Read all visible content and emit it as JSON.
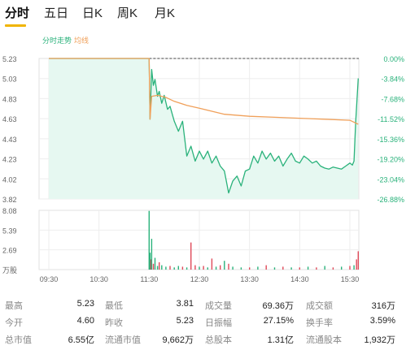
{
  "tabs": [
    {
      "label": "分时",
      "active": true
    },
    {
      "label": "五日",
      "active": false
    },
    {
      "label": "日K",
      "active": false
    },
    {
      "label": "周K",
      "active": false
    },
    {
      "label": "月K",
      "active": false
    }
  ],
  "colors": {
    "price_line": "#2ab27b",
    "avg_line": "#f0a05a",
    "area_fill": "#e6f8f1",
    "up": "#e04a5a",
    "down": "#2ab27b",
    "grid": "#eeeeee",
    "ref_line": "#444444",
    "tab_underline": "#f0b400"
  },
  "chart_data": [
    {
      "type": "line",
      "legend": [
        {
          "name": "分时走势",
          "color": "#2ab27b"
        },
        {
          "name": "均线",
          "color": "#f0a05a"
        }
      ],
      "legend_position": "top-left",
      "x_ticks": [
        "09:30",
        "10:30",
        "11:30",
        "12:30",
        "13:30",
        "14:30",
        "15:30"
      ],
      "y_ticks_left": [
        "5.23",
        "5.03",
        "4.83",
        "4.63",
        "4.43",
        "4.23",
        "4.02",
        "3.82"
      ],
      "y_ticks_right": [
        "0.00%",
        "-3.84%",
        "-7.68%",
        "-11.52%",
        "-15.36%",
        "-19.20%",
        "-23.04%",
        "-26.88%"
      ],
      "ylim": [
        3.82,
        5.23
      ],
      "grid": true,
      "series": [
        {
          "name": "分时走势",
          "x": [
            "09:30",
            "11:28",
            "11:30",
            "11:31",
            "11:33",
            "11:35",
            "11:37",
            "11:40",
            "11:42",
            "11:45",
            "11:48",
            "11:52",
            "11:55",
            "12:00",
            "12:05",
            "12:10",
            "12:15",
            "12:20",
            "12:25",
            "12:30",
            "12:35",
            "12:40",
            "12:45",
            "12:50",
            "12:55",
            "13:00",
            "13:05",
            "13:10",
            "13:15",
            "13:20",
            "13:25",
            "13:30",
            "13:35",
            "13:40",
            "13:45",
            "13:50",
            "13:55",
            "14:00",
            "14:05",
            "14:10",
            "14:15",
            "14:20",
            "14:25",
            "14:30",
            "14:35",
            "14:40",
            "14:45",
            "14:50",
            "14:55",
            "15:00",
            "15:05",
            "15:10",
            "15:15",
            "15:20",
            "15:25",
            "15:30",
            "15:33",
            "15:35",
            "15:37",
            "15:40"
          ],
          "y": [
            5.23,
            5.23,
            5.23,
            4.62,
            5.12,
            4.96,
            5.02,
            4.85,
            4.9,
            4.78,
            4.86,
            4.72,
            4.75,
            4.6,
            4.5,
            4.6,
            4.25,
            4.35,
            4.2,
            4.3,
            4.22,
            4.3,
            4.18,
            4.25,
            4.15,
            4.1,
            3.88,
            4.0,
            4.05,
            3.95,
            4.1,
            4.12,
            4.25,
            4.18,
            4.3,
            4.22,
            4.28,
            4.2,
            4.25,
            4.15,
            4.22,
            4.28,
            4.2,
            4.18,
            4.25,
            4.22,
            4.18,
            4.2,
            4.15,
            4.13,
            4.12,
            4.14,
            4.13,
            4.12,
            4.15,
            4.18,
            4.16,
            4.2,
            4.6,
            5.03
          ]
        },
        {
          "name": "均线",
          "x": [
            "09:30",
            "11:28",
            "11:30",
            "11:31",
            "11:33",
            "11:40",
            "11:50",
            "12:00",
            "12:15",
            "12:30",
            "12:45",
            "13:00",
            "13:30",
            "14:00",
            "14:30",
            "15:00",
            "15:30",
            "15:40"
          ],
          "y": [
            5.23,
            5.23,
            5.23,
            4.62,
            4.85,
            4.86,
            4.84,
            4.8,
            4.76,
            4.73,
            4.7,
            4.67,
            4.65,
            4.64,
            4.63,
            4.62,
            4.61,
            4.57
          ]
        }
      ]
    },
    {
      "type": "bar",
      "y_ticks_left": [
        "8.08",
        "5.39",
        "2.69",
        "万股"
      ],
      "ylim": [
        0,
        8.08
      ],
      "unit": "万股",
      "grid": true,
      "series": [
        {
          "name": "成交量",
          "x": [
            "11:30",
            "11:31",
            "11:32",
            "11:33",
            "11:35",
            "11:37",
            "11:40",
            "11:42",
            "11:45",
            "11:50",
            "11:55",
            "12:00",
            "12:05",
            "12:10",
            "12:15",
            "12:20",
            "12:25",
            "12:30",
            "12:35",
            "12:40",
            "12:45",
            "12:50",
            "12:55",
            "13:00",
            "13:05",
            "13:10",
            "13:20",
            "13:30",
            "13:40",
            "13:50",
            "14:00",
            "14:10",
            "14:20",
            "14:30",
            "14:40",
            "14:50",
            "15:00",
            "15:10",
            "15:20",
            "15:30",
            "15:35",
            "15:38",
            "15:40"
          ],
          "values": [
            8.0,
            2.3,
            1.4,
            4.2,
            0.8,
            1.6,
            0.5,
            1.0,
            0.6,
            0.4,
            0.5,
            0.3,
            0.5,
            0.4,
            0.3,
            3.7,
            0.6,
            0.4,
            0.5,
            0.3,
            1.5,
            0.4,
            0.6,
            1.2,
            0.8,
            0.4,
            0.3,
            0.3,
            0.4,
            0.6,
            0.3,
            0.4,
            0.3,
            0.3,
            0.4,
            0.3,
            0.5,
            0.3,
            0.4,
            0.5,
            0.6,
            1.4,
            2.5
          ],
          "direction": [
            "down",
            "down",
            "up",
            "down",
            "up",
            "down",
            "down",
            "up",
            "down",
            "down",
            "up",
            "down",
            "down",
            "up",
            "down",
            "up",
            "up",
            "down",
            "up",
            "down",
            "up",
            "down",
            "up",
            "down",
            "up",
            "down",
            "down",
            "up",
            "down",
            "up",
            "down",
            "up",
            "down",
            "up",
            "down",
            "up",
            "down",
            "up",
            "down",
            "up",
            "down",
            "up",
            "up"
          ]
        }
      ]
    }
  ],
  "stats": [
    [
      {
        "label": "最高",
        "value": "5.23"
      },
      {
        "label": "最低",
        "value": "3.81"
      },
      {
        "label": "成交量",
        "value": "69.36万"
      },
      {
        "label": "成交额",
        "value": "316万"
      }
    ],
    [
      {
        "label": "今开",
        "value": "4.60"
      },
      {
        "label": "昨收",
        "value": "5.23"
      },
      {
        "label": "日振幅",
        "value": "27.15%"
      },
      {
        "label": "换手率",
        "value": "3.59%"
      }
    ],
    [
      {
        "label": "总市值",
        "value": "6.55亿"
      },
      {
        "label": "流通市值",
        "value": "9,662万"
      },
      {
        "label": "总股本",
        "value": "1.31亿"
      },
      {
        "label": "流通股本",
        "value": "1,932万"
      }
    ]
  ]
}
